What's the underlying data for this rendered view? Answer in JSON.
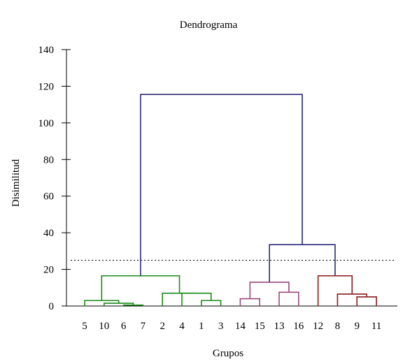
{
  "chart_data": {
    "type": "dendrogram",
    "title": "Dendrograma",
    "xlabel": "Grupos",
    "ylabel": "Disimilitud",
    "ylim": [
      0,
      140
    ],
    "yticks": [
      0,
      20,
      40,
      60,
      80,
      100,
      120,
      140
    ],
    "leaf_order": [
      "5",
      "10",
      "6",
      "7",
      "2",
      "4",
      "1",
      "3",
      "14",
      "15",
      "13",
      "16",
      "12",
      "8",
      "9",
      "11"
    ],
    "cut_height": 25,
    "colors": {
      "green": "#1a8a1a",
      "purple": "#9a4a78",
      "red": "#8b1a1a",
      "navy": "#2a2a7a"
    },
    "merges": [
      {
        "id": "a",
        "children": [
          "6",
          "7"
        ],
        "height": 0.5,
        "color": "green"
      },
      {
        "id": "b",
        "children": [
          "10",
          "a"
        ],
        "height": 1.5,
        "color": "green"
      },
      {
        "id": "c",
        "children": [
          "5",
          "b"
        ],
        "height": 3,
        "color": "green"
      },
      {
        "id": "d",
        "children": [
          "1",
          "3"
        ],
        "height": 3,
        "color": "green"
      },
      {
        "id": "e",
        "children": [
          "4",
          "d"
        ],
        "height": 7,
        "color": "green"
      },
      {
        "id": "f",
        "children": [
          "2",
          "e"
        ],
        "height": 7,
        "color": "green"
      },
      {
        "id": "g",
        "children": [
          "c",
          "f"
        ],
        "height": 16.5,
        "color": "green"
      },
      {
        "id": "h",
        "children": [
          "14",
          "15"
        ],
        "height": 4,
        "color": "purple"
      },
      {
        "id": "i",
        "children": [
          "13",
          "16"
        ],
        "height": 7.5,
        "color": "purple"
      },
      {
        "id": "j",
        "children": [
          "h",
          "i"
        ],
        "height": 13,
        "color": "purple"
      },
      {
        "id": "k",
        "children": [
          "9",
          "11"
        ],
        "height": 5,
        "color": "red"
      },
      {
        "id": "l",
        "children": [
          "8",
          "k"
        ],
        "height": 6.5,
        "color": "red"
      },
      {
        "id": "m",
        "children": [
          "12",
          "l"
        ],
        "height": 16.5,
        "color": "red"
      },
      {
        "id": "n",
        "children": [
          "j",
          "m"
        ],
        "height": 33.5,
        "color": "navy"
      },
      {
        "id": "o",
        "children": [
          "g",
          "n"
        ],
        "height": 115.5,
        "color": "navy"
      }
    ]
  }
}
